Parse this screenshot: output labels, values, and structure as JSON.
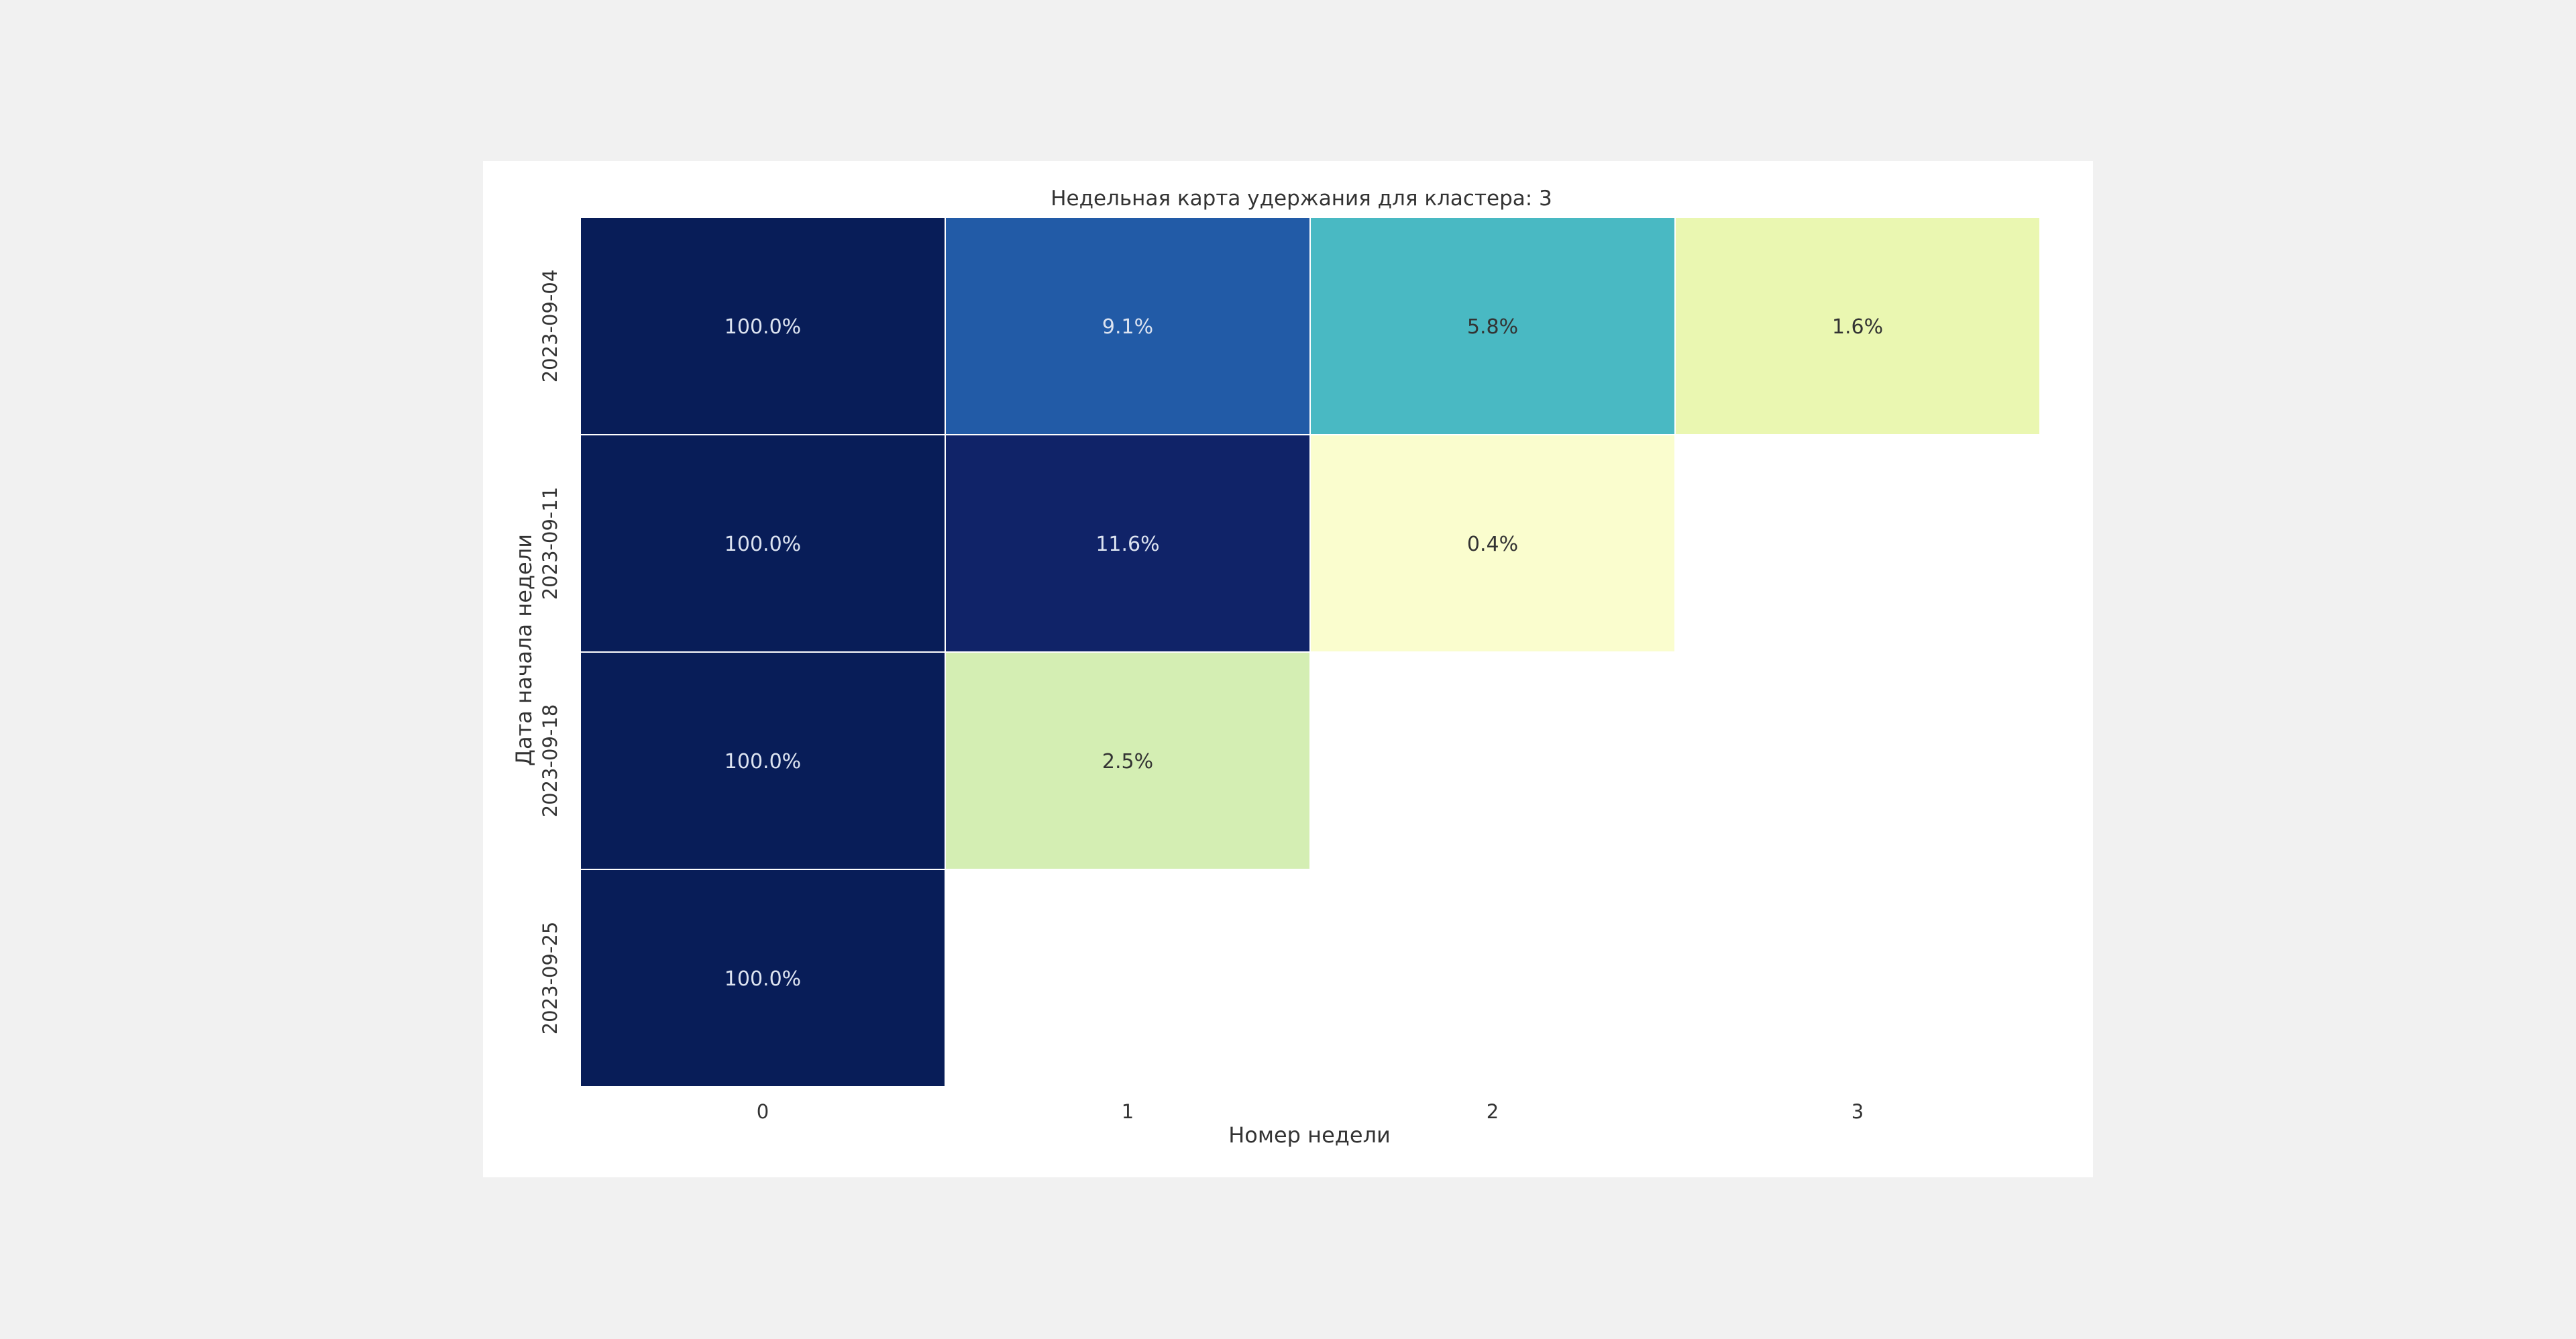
{
  "chart_data": {
    "type": "heatmap",
    "title": "Недельная карта удержания для кластера: 3",
    "xlabel": "Номер недели",
    "ylabel": "Дата начала недели",
    "x_categories": [
      "0",
      "1",
      "2",
      "3"
    ],
    "y_categories": [
      "2023-09-04",
      "2023-09-11",
      "2023-09-18",
      "2023-09-25"
    ],
    "values": [
      [
        100.0,
        9.1,
        5.8,
        1.6
      ],
      [
        100.0,
        11.6,
        0.4,
        null
      ],
      [
        100.0,
        2.5,
        null,
        null
      ],
      [
        100.0,
        null,
        null,
        null
      ]
    ],
    "value_labels": [
      [
        "100.0%",
        "9.1%",
        "5.8%",
        "1.6%"
      ],
      [
        "100.0%",
        "11.6%",
        "0.4%",
        null
      ],
      [
        "100.0%",
        "2.5%",
        null,
        null
      ],
      [
        "100.0%",
        null,
        null,
        null
      ]
    ],
    "value_range": [
      0,
      12
    ],
    "colormap": "YlGnBu",
    "colors": {
      "max": "#081d58",
      "cell_border": "#ffffff",
      "label_dark_bg": "#dce3f0",
      "label_light_bg": "#333333",
      "background": "#f1f1f1",
      "figure": "#ffffff"
    },
    "legend": "none",
    "grid": false
  }
}
